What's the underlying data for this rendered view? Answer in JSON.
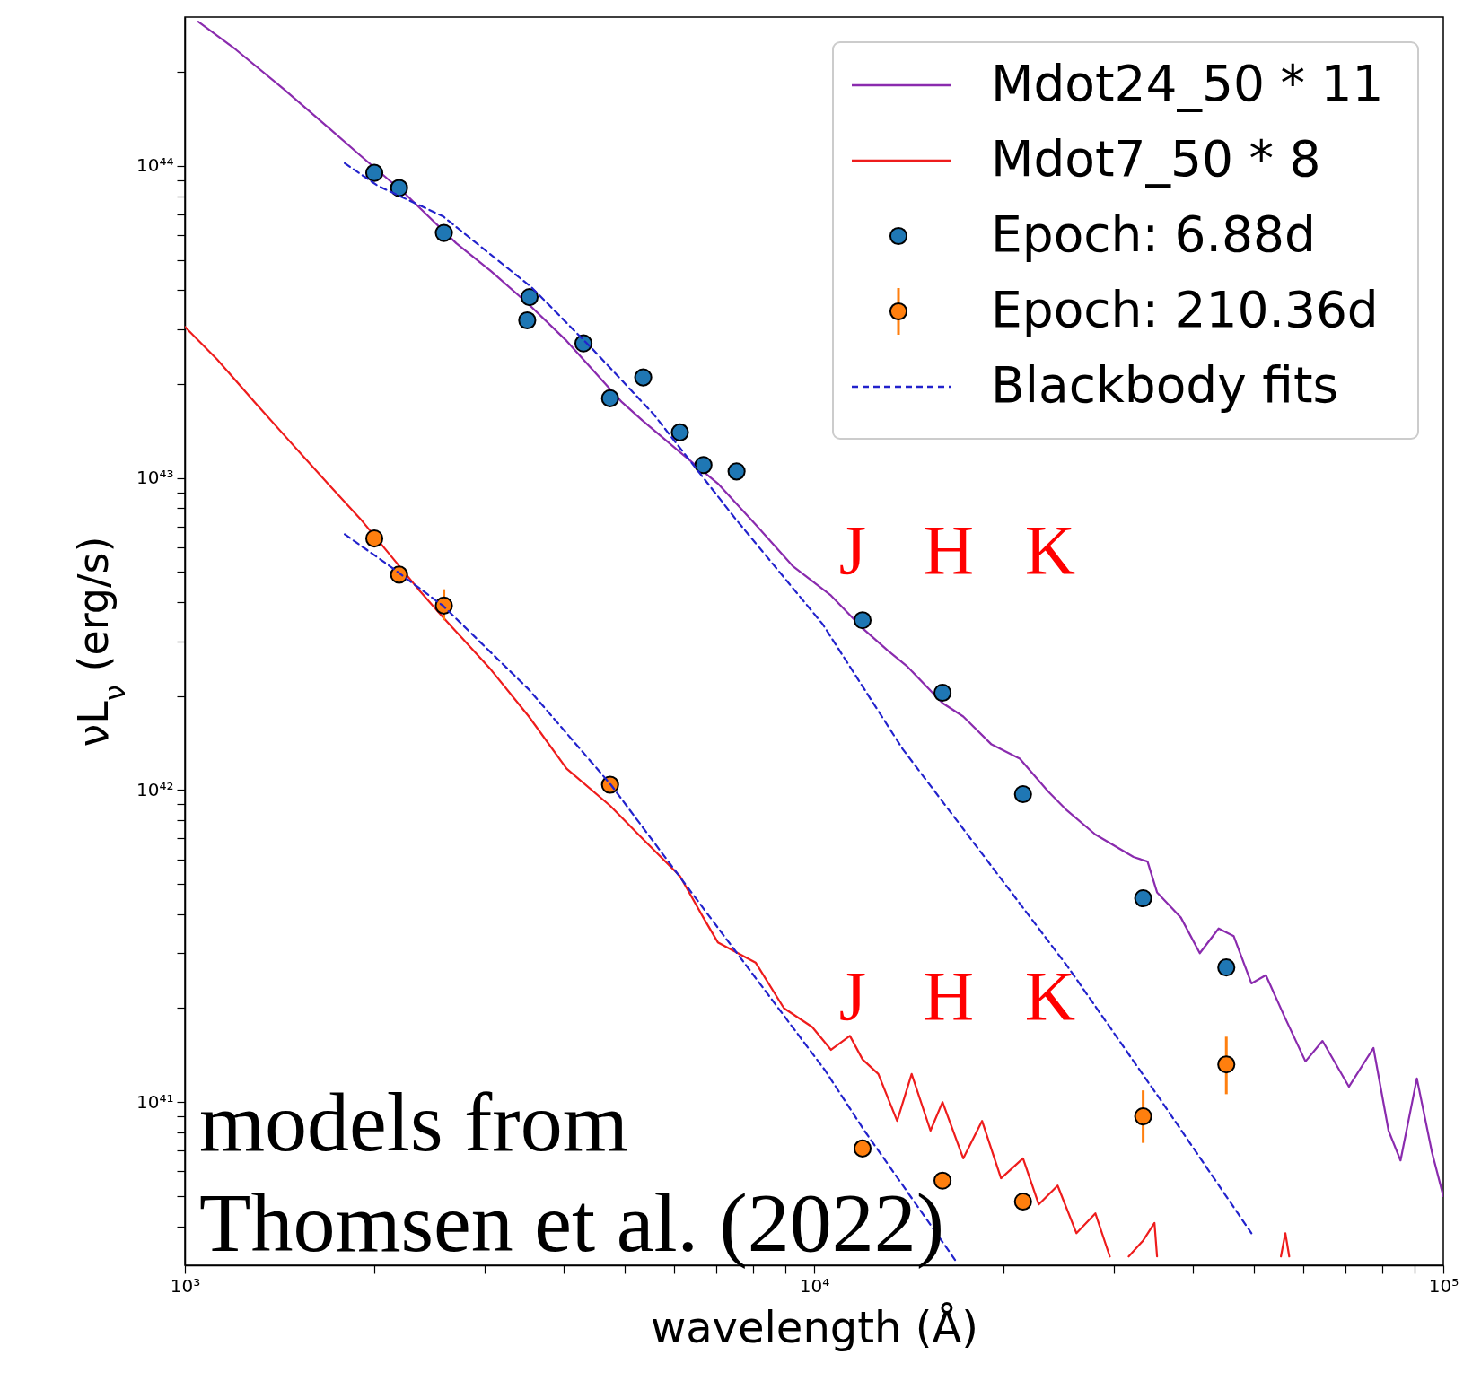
{
  "chart_data": {
    "type": "line",
    "xlabel": "wavelength (Å)",
    "ylabel": "νL$_{ν}$ (erg/s)",
    "log": "xy",
    "legend": "top right",
    "xlim": [
      1000,
      100000
    ],
    "ylim": [
      3e+40,
      3e+44
    ],
    "xticks": [
      {
        "value": 1000,
        "label": "10³"
      },
      {
        "value": 2000,
        "label": null
      },
      {
        "value": 3000,
        "label": null
      },
      {
        "value": 4000,
        "label": null
      },
      {
        "value": 5000,
        "label": null
      },
      {
        "value": 6000,
        "label": null
      },
      {
        "value": 7000,
        "label": null
      },
      {
        "value": 8000,
        "label": null
      },
      {
        "value": 9000,
        "label": null
      },
      {
        "value": 10000,
        "label": "10⁴"
      },
      {
        "value": 20000,
        "label": null
      },
      {
        "value": 30000,
        "label": null
      },
      {
        "value": 40000,
        "label": null
      },
      {
        "value": 50000,
        "label": null
      },
      {
        "value": 60000,
        "label": null
      },
      {
        "value": 70000,
        "label": null
      },
      {
        "value": 80000,
        "label": null
      },
      {
        "value": 90000,
        "label": null
      },
      {
        "value": 100000,
        "label": "10⁵"
      }
    ],
    "yticks": [
      {
        "value": 4e+40,
        "label": null
      },
      {
        "value": 5e+40,
        "label": null
      },
      {
        "value": 6e+40,
        "label": null
      },
      {
        "value": 7e+40,
        "label": null
      },
      {
        "value": 8e+40,
        "label": null
      },
      {
        "value": 9e+40,
        "label": null
      },
      {
        "value": 1e+41,
        "label": "10⁴¹"
      },
      {
        "value": 2e+41,
        "label": null
      },
      {
        "value": 3e+41,
        "label": null
      },
      {
        "value": 4e+41,
        "label": null
      },
      {
        "value": 5e+41,
        "label": null
      },
      {
        "value": 6e+41,
        "label": null
      },
      {
        "value": 7e+41,
        "label": null
      },
      {
        "value": 8e+41,
        "label": null
      },
      {
        "value": 9e+41,
        "label": null
      },
      {
        "value": 1e+42,
        "label": "10⁴²"
      },
      {
        "value": 2e+42,
        "label": null
      },
      {
        "value": 3e+42,
        "label": null
      },
      {
        "value": 4e+42,
        "label": null
      },
      {
        "value": 5e+42,
        "label": null
      },
      {
        "value": 6e+42,
        "label": null
      },
      {
        "value": 7e+42,
        "label": null
      },
      {
        "value": 8e+42,
        "label": null
      },
      {
        "value": 9e+42,
        "label": null
      },
      {
        "value": 1e+43,
        "label": "10⁴³"
      },
      {
        "value": 2e+43,
        "label": null
      },
      {
        "value": 3e+43,
        "label": null
      },
      {
        "value": 4e+43,
        "label": null
      },
      {
        "value": 5e+43,
        "label": null
      },
      {
        "value": 6e+43,
        "label": null
      },
      {
        "value": 7e+43,
        "label": null
      },
      {
        "value": 8e+43,
        "label": null
      },
      {
        "value": 9e+43,
        "label": null
      },
      {
        "value": 1e+44,
        "label": "10⁴⁴"
      },
      {
        "value": 2e+44,
        "label": null
      }
    ],
    "annotations": [
      "J",
      "H",
      "K",
      "J",
      "H",
      "K",
      "models from\nThomsen et al. (2022)"
    ],
    "series": [
      {
        "name": "Mdot24_50 * 11",
        "type": "line",
        "color": "#8a2bae",
        "x": [
          1050,
          1205,
          1432,
          1703,
          1900,
          2245,
          2700,
          3065,
          3521,
          4043,
          4950,
          5331,
          6120,
          7031,
          8072,
          9268,
          10640,
          11940,
          13090,
          14030,
          16000,
          17260,
          19140,
          21230,
          23550,
          25230,
          27990,
          32180,
          33880,
          35080,
          38280,
          41020,
          43950,
          46450,
          49550,
          52240,
          55980,
          60390,
          64270,
          70790,
          77450,
          81840,
          85510,
          90780,
          95940,
          100000
        ],
        "values": [
          2.9e+44,
          2.36e+44,
          1.77e+44,
          1.31e+44,
          1.08e+44,
          8.1e+43,
          5.65e+43,
          4.6e+43,
          3.6e+43,
          2.75e+43,
          1.75e+43,
          1.53e+43,
          1.21e+43,
          9.6e+42,
          7.1e+42,
          5.2e+42,
          4.2e+42,
          3.3e+42,
          2.8e+42,
          2.5e+42,
          1.9e+42,
          1.72e+42,
          1.4e+42,
          1.26e+42,
          9.9e+41,
          8.6e+41,
          7.2e+41,
          6.1e+41,
          5.9e+41,
          4.7e+41,
          3.9e+41,
          3e+41,
          3.6e+41,
          3.4e+41,
          2.4e+41,
          2.55e+41,
          1.87e+41,
          1.35e+41,
          1.57e+41,
          1.12e+41,
          1.49e+41,
          8.1e+40,
          6.5e+40,
          1.19e+41,
          6.9e+40,
          5e+40
        ]
      },
      {
        "name": "Mdot7_50 * 8",
        "type": "line",
        "color": "#ee1c1c",
        "x": [
          1000,
          1125,
          1291,
          1483,
          1703,
          1900,
          2350,
          2578,
          3065,
          3521,
          4043,
          4742,
          5331,
          6120,
          6668,
          7031,
          8072,
          8954,
          9931,
          10640,
          11400,
          11940,
          12650,
          13550,
          14290,
          15310,
          16000,
          17260,
          18490,
          19820,
          21480,
          22750,
          24380,
          26120,
          27990,
          29510,
          30550,
          31620,
          33340,
          34750,
          35080,
          45000,
          55200,
          56100,
          56900
        ],
        "values": [
          3.05e+43,
          2.4e+43,
          1.75e+43,
          1.28e+43,
          9.4e+42,
          7.4e+42,
          4.4e+42,
          3.56e+42,
          2.43e+42,
          1.72e+42,
          1.17e+42,
          8.9e+41,
          7e+41,
          5.3e+41,
          3.9e+41,
          3.25e+41,
          2.8e+41,
          2e+41,
          1.74e+41,
          1.47e+41,
          1.63e+41,
          1.37e+41,
          1.23e+41,
          8.7e+40,
          1.23e+41,
          8.1e+40,
          1e+41,
          6.6e+40,
          8.7e+40,
          5.7e+40,
          6.6e+40,
          4.7e+40,
          5.4e+40,
          3.8e+40,
          4.4e+40,
          3.2e+40,
          null,
          3.2e+40,
          3.6e+40,
          4.1e+40,
          3.2e+40,
          null,
          3.2e+40,
          3.8e+40,
          3.2e+40
        ]
      },
      {
        "name": "Epoch: 6.88d",
        "type": "scatter",
        "marker": "circle",
        "color": "#1f77b4",
        "x": [
          2000,
          2190,
          2580,
          3500,
          3530,
          4300,
          4740,
          5350,
          6120,
          6670,
          7530,
          11940,
          16000,
          21480,
          33340,
          45200
        ],
        "values": [
          9.5e+43,
          8.5e+43,
          6.1e+43,
          3.2e+43,
          3.8e+43,
          2.7e+43,
          1.8e+43,
          2.1e+43,
          1.4e+43,
          1.1e+43,
          1.05e+43,
          3.5e+42,
          2.05e+42,
          9.7e+41,
          4.5e+41,
          2.7e+41
        ]
      },
      {
        "name": "Epoch: 210.36d",
        "type": "scatter",
        "marker": "circle",
        "color": "#ff7f0e",
        "x": [
          2000,
          2190,
          2580,
          4740,
          11940,
          16000,
          21480,
          33340,
          45200
        ],
        "values": [
          6.4e+42,
          4.9e+42,
          3.9e+42,
          1.04e+42,
          7.1e+40,
          5.6e+40,
          4.8e+40,
          9e+40,
          1.32e+41
        ],
        "errors": [
          null,
          null,
          [
            3.5e+42,
            4.4e+42
          ],
          null,
          null,
          null,
          null,
          [
            7.4e+40,
            1.09e+41
          ],
          [
            1.06e+41,
            1.62e+41
          ]
        ]
      },
      {
        "name": "Blackbody fits",
        "type": "line",
        "line_style": "dashed",
        "color": "#2222cc",
        "x": [
          1795,
          2023,
          2570,
          3548,
          4436,
          5559,
          7499,
          10320,
          13840,
          19140,
          25350,
          35730,
          49550
        ],
        "values": [
          1.02e+44,
          8.65e+43,
          6.9e+43,
          4.1e+43,
          2.6e+43,
          1.6e+43,
          7.4e+42,
          3.4e+42,
          1.35e+42,
          5.7e+41,
          2.7e+41,
          1e+41,
          3.8e+40
        ]
      },
      {
        "type": "line",
        "line_style": "dashed",
        "color": "#2222cc",
        "x": [
          1795,
          2095,
          2570,
          3521,
          4753,
          6714,
          10420,
          12020,
          16790
        ],
        "values": [
          6.6e+42,
          5.3e+42,
          3.9e+42,
          2.1e+42,
          1.04e+42,
          4.1e+41,
          1.26e+41,
          8.1e+40,
          3.1e+40
        ]
      }
    ]
  }
}
